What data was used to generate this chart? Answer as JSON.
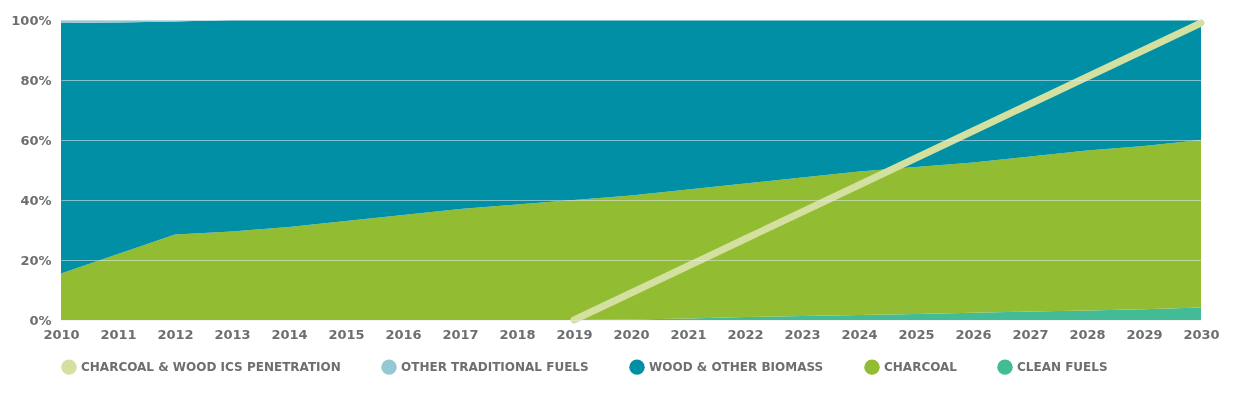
{
  "chart_data": {
    "type": "area",
    "stacked": true,
    "categories": [
      "2010",
      "2011",
      "2012",
      "2013",
      "2014",
      "2015",
      "2016",
      "2017",
      "2018",
      "2019",
      "2020",
      "2021",
      "2022",
      "2023",
      "2024",
      "2025",
      "2026",
      "2027",
      "2028",
      "2029",
      "2030"
    ],
    "series": [
      {
        "name": "CLEAN FUELS",
        "color": "#44bb97",
        "values": [
          0,
          0,
          0,
          0,
          0,
          0,
          0,
          0,
          0,
          0,
          0.2,
          0.5,
          1,
          1.3,
          1.7,
          2,
          2.4,
          2.8,
          3.2,
          3.6,
          4.2
        ]
      },
      {
        "name": "CHARCOAL",
        "color": "#92bc31",
        "values": [
          15.5,
          22,
          28.5,
          29.5,
          31,
          33,
          35,
          37,
          38.5,
          40,
          41.3,
          43,
          44.5,
          46.2,
          47.8,
          49,
          50.1,
          51.7,
          53.3,
          54.4,
          55.8
        ]
      },
      {
        "name": "WOOD & OTHER BIOMASS",
        "color": "#008fa5",
        "values": [
          83.5,
          77.2,
          71,
          70.5,
          69,
          67,
          65,
          63,
          61.5,
          60,
          58.5,
          56.5,
          54.5,
          52.5,
          50.5,
          49,
          47.5,
          45.5,
          43.5,
          42,
          40
        ]
      },
      {
        "name": "OTHER TRADITIONAL FUELS",
        "color": "#94c8d3",
        "values": [
          1,
          0.8,
          0.5,
          0,
          0,
          0,
          0,
          0,
          0,
          0,
          0,
          0,
          0,
          0,
          0,
          0,
          0,
          0,
          0,
          0,
          0
        ]
      },
      {
        "name": "CHARCOAL & WOOD ICS PENETRATION",
        "color": "#d3e0a0",
        "type": "line",
        "values": [
          null,
          null,
          null,
          null,
          null,
          null,
          null,
          null,
          null,
          0,
          9,
          18,
          27,
          36,
          45,
          54,
          63,
          72,
          81,
          90,
          99
        ]
      }
    ],
    "ylim": [
      0,
      100
    ],
    "yticks": [
      {
        "value": 0,
        "label": "0%"
      },
      {
        "value": 20,
        "label": "20%"
      },
      {
        "value": 40,
        "label": "40%"
      },
      {
        "value": 60,
        "label": "60%"
      },
      {
        "value": 80,
        "label": "80%"
      },
      {
        "value": 100,
        "label": "100%"
      }
    ],
    "grid": "y",
    "legend": "bottom"
  }
}
